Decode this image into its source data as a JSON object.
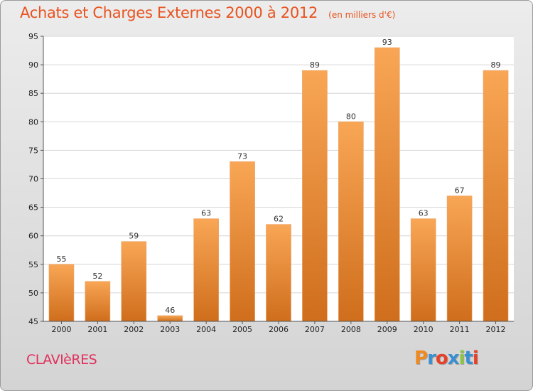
{
  "chart_data": {
    "type": "bar",
    "title": "Achats et Charges Externes 2000 à 2012",
    "subtitle": "(en milliers d'€)",
    "categories": [
      "2000",
      "2001",
      "2002",
      "2003",
      "2004",
      "2005",
      "2006",
      "2007",
      "2008",
      "2009",
      "2010",
      "2011",
      "2012"
    ],
    "values": [
      55,
      52,
      59,
      46,
      63,
      73,
      62,
      89,
      80,
      93,
      63,
      67,
      89
    ],
    "ylim": [
      45,
      95
    ],
    "yticks": [
      45,
      50,
      55,
      60,
      65,
      70,
      75,
      80,
      85,
      90,
      95
    ],
    "grid": true,
    "bar_color_top": "#f8a655",
    "bar_color_bottom": "#cf6e1c"
  },
  "footer": {
    "commune": "CLAVIèRES",
    "logo_letters": [
      "P",
      "r",
      "o",
      "x",
      "i",
      "t",
      "i"
    ],
    "logo_colors": [
      "#f08a1e",
      "#3a8fd0",
      "#e8412a",
      "#3a8fd0",
      "#8cc63f",
      "#3a8fd0",
      "#e8412a"
    ]
  }
}
